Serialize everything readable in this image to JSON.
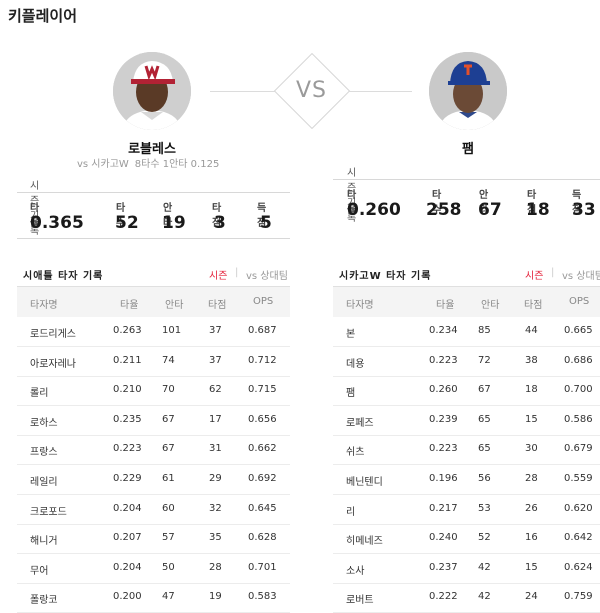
{
  "page": {
    "title": "키플레이어"
  },
  "vs_label": "VS",
  "player_left": {
    "name": "로블레스",
    "subline": {
      "vs": "vs 시카고W",
      "game": "8타수 1안타 0.125"
    },
    "season": {
      "label": "시즌 기록",
      "headers": [
        "타율",
        "타수",
        "안타",
        "타점",
        "득점"
      ],
      "values": [
        "0.365",
        "52",
        "19",
        "3",
        "5"
      ]
    }
  },
  "player_right": {
    "name": "팸",
    "season": {
      "label": "시즌 기록",
      "headers": [
        "타율",
        "타수",
        "안타",
        "타점",
        "득점"
      ],
      "values": [
        "0.260",
        "258",
        "67",
        "18",
        "33"
      ]
    }
  },
  "table_left": {
    "title": "시애틀 타자 기록",
    "tab_active": "시즌",
    "tab_inactive": "vs 상대팀",
    "columns": [
      "타자명",
      "타율",
      "안타",
      "타점",
      "OPS"
    ],
    "rows": [
      [
        "로드리게스",
        "0.263",
        "101",
        "37",
        "0.687"
      ],
      [
        "아로자레나",
        "0.211",
        "74",
        "37",
        "0.712"
      ],
      [
        "롤리",
        "0.210",
        "70",
        "62",
        "0.715"
      ],
      [
        "로하스",
        "0.235",
        "67",
        "17",
        "0.656"
      ],
      [
        "프랑스",
        "0.223",
        "67",
        "31",
        "0.662"
      ],
      [
        "레일리",
        "0.229",
        "61",
        "29",
        "0.692"
      ],
      [
        "크로포드",
        "0.204",
        "60",
        "32",
        "0.645"
      ],
      [
        "해니거",
        "0.207",
        "57",
        "35",
        "0.628"
      ],
      [
        "무어",
        "0.204",
        "50",
        "28",
        "0.701"
      ],
      [
        "폴랑코",
        "0.200",
        "47",
        "19",
        "0.583"
      ]
    ]
  },
  "table_right": {
    "title": "시카고W 타자 기록",
    "tab_active": "시즌",
    "tab_inactive": "vs 상대팀",
    "columns": [
      "타자명",
      "타율",
      "안타",
      "타점",
      "OPS"
    ],
    "rows": [
      [
        "본",
        "0.234",
        "85",
        "44",
        "0.665"
      ],
      [
        "데용",
        "0.223",
        "72",
        "38",
        "0.686"
      ],
      [
        "팸",
        "0.260",
        "67",
        "18",
        "0.700"
      ],
      [
        "로페즈",
        "0.239",
        "65",
        "15",
        "0.586"
      ],
      [
        "쉬츠",
        "0.223",
        "65",
        "30",
        "0.679"
      ],
      [
        "베닌텐디",
        "0.196",
        "56",
        "28",
        "0.559"
      ],
      [
        "리",
        "0.217",
        "53",
        "26",
        "0.620"
      ],
      [
        "히메네즈",
        "0.240",
        "52",
        "16",
        "0.642"
      ],
      [
        "소사",
        "0.237",
        "42",
        "15",
        "0.624"
      ],
      [
        "로버트",
        "0.222",
        "42",
        "24",
        "0.759"
      ]
    ]
  }
}
